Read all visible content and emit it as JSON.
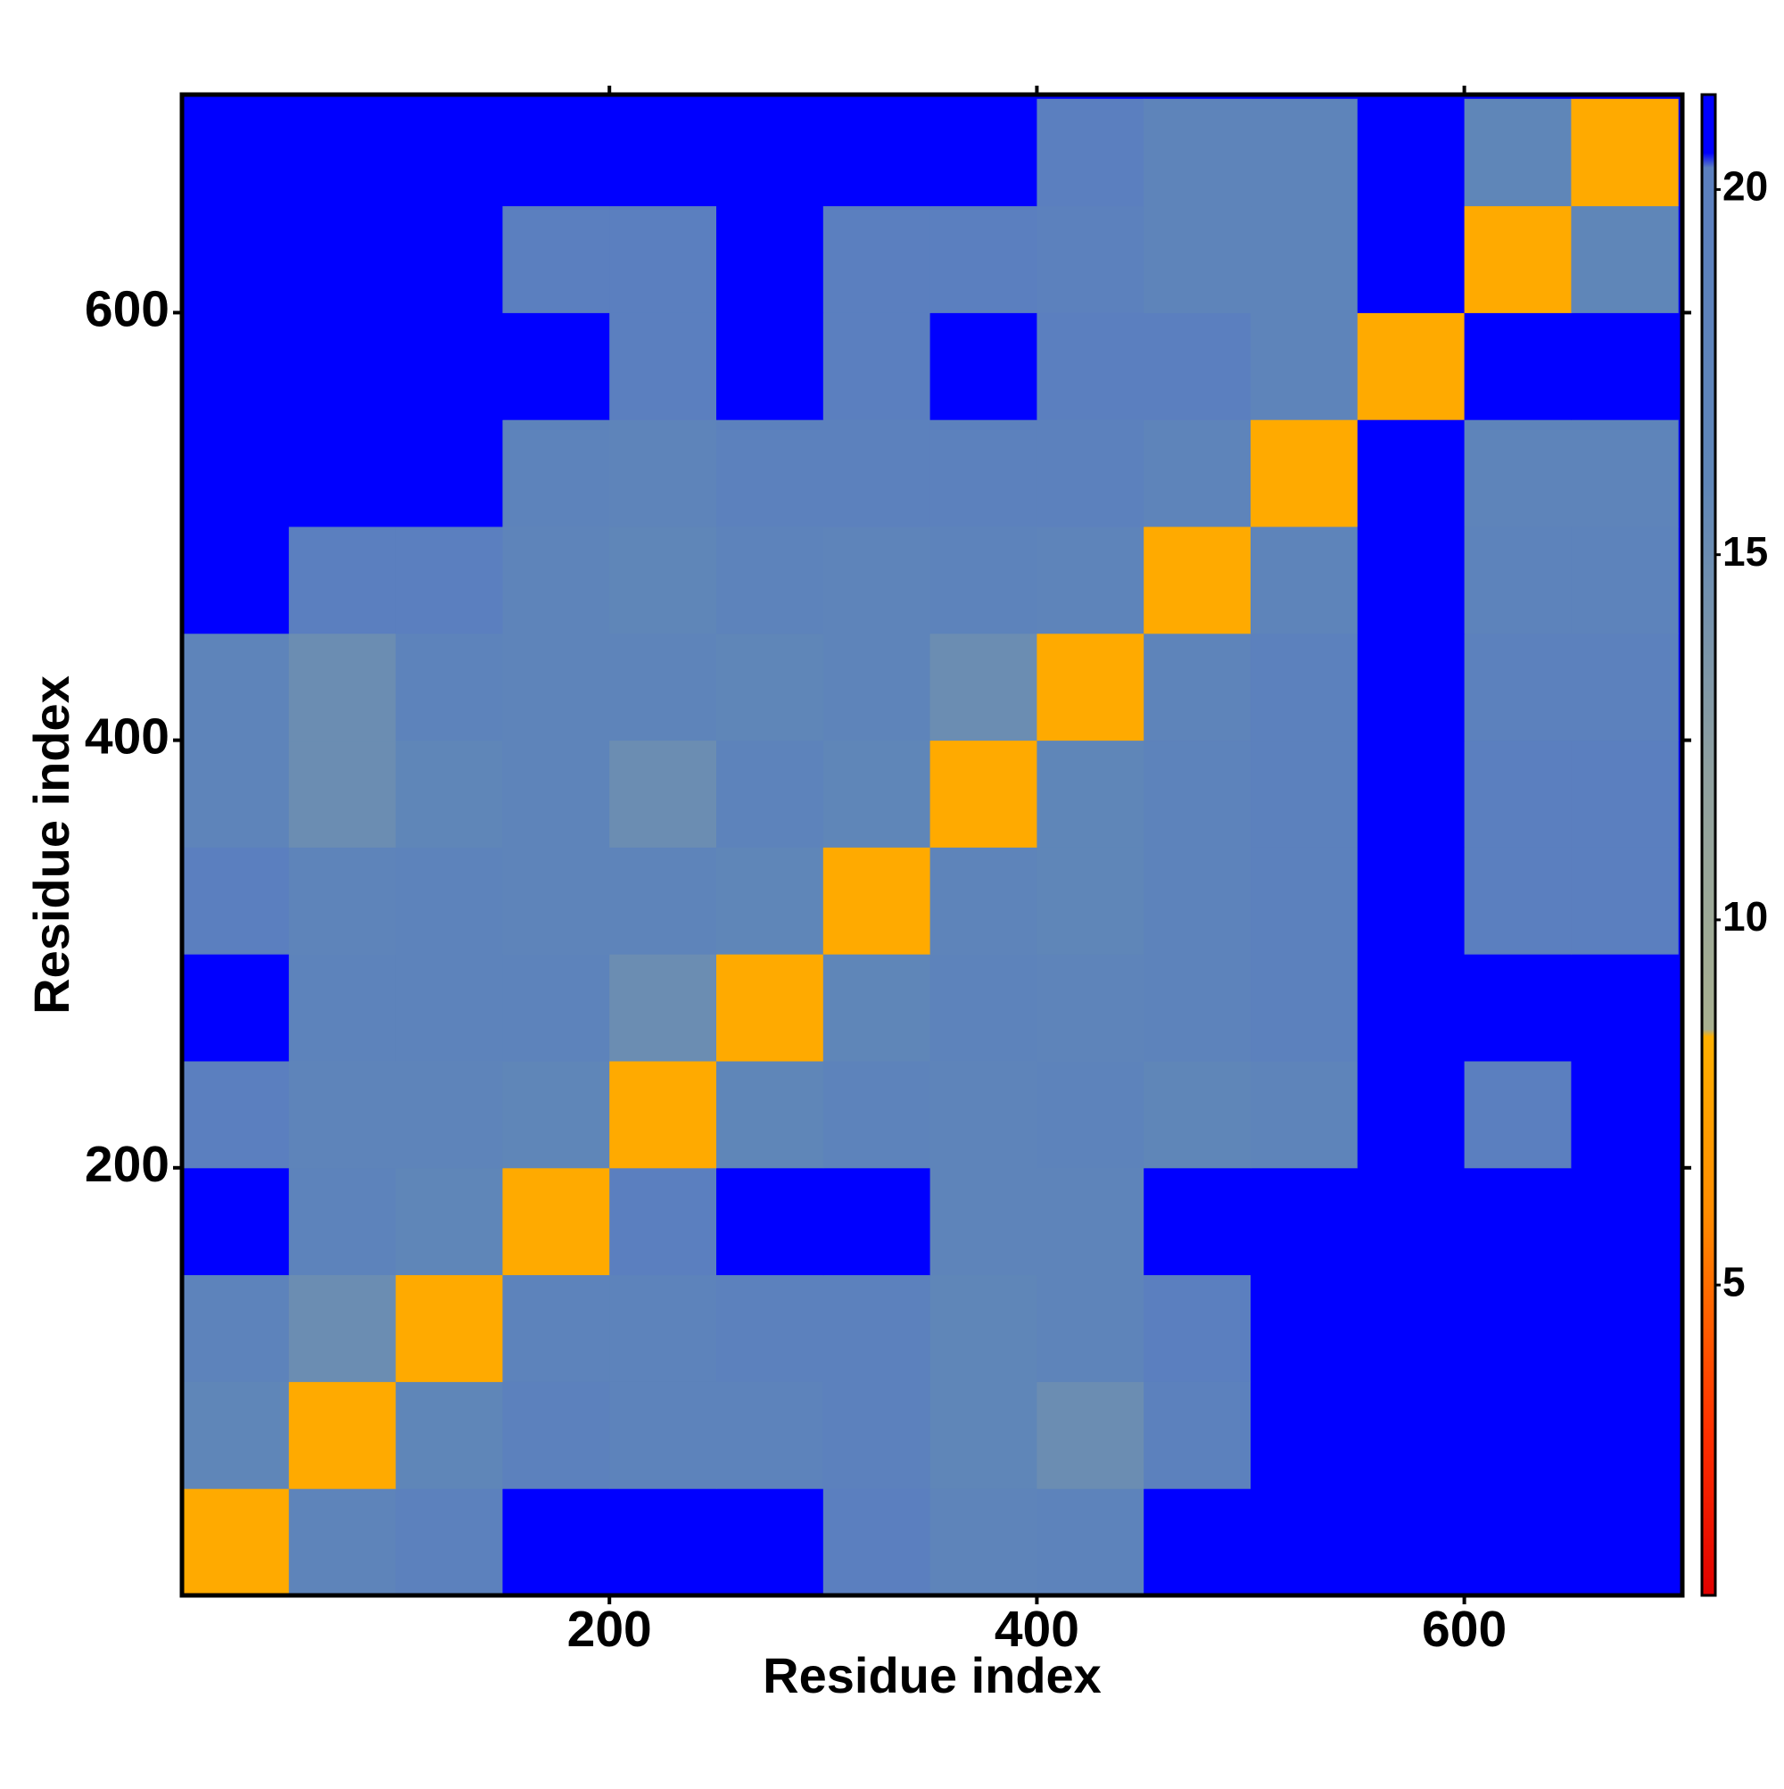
{
  "chart_data": {
    "type": "heatmap",
    "x_label": "Residue index",
    "y_label": "Residue index",
    "xbins": [
      0,
      50,
      100,
      150,
      200,
      250,
      300,
      350,
      400,
      450,
      500,
      550,
      600,
      650,
      700
    ],
    "ybins": [
      0,
      50,
      100,
      150,
      200,
      250,
      300,
      350,
      400,
      450,
      500,
      550,
      600,
      650,
      700
    ],
    "xlim": [
      0,
      702
    ],
    "ylim": [
      0,
      702
    ],
    "xticks": [
      200,
      400,
      600
    ],
    "yticks": [
      200,
      400,
      600
    ],
    "z": [
      [
        8,
        17,
        19,
        21,
        21,
        21,
        20,
        17,
        18,
        21,
        21,
        21,
        21,
        21
      ],
      [
        16,
        8,
        16,
        19,
        18,
        18,
        19,
        16,
        15,
        19,
        21,
        21,
        21,
        21
      ],
      [
        18,
        15,
        8,
        18,
        18,
        19,
        19,
        16,
        17,
        20,
        21,
        21,
        21,
        21
      ],
      [
        21,
        18,
        16,
        8,
        20,
        21,
        21,
        17,
        17,
        21,
        21,
        21,
        21,
        21
      ],
      [
        20,
        17,
        17,
        16,
        8,
        16,
        18,
        17,
        18,
        16,
        17,
        21,
        20,
        21
      ],
      [
        21,
        18,
        18,
        18,
        15,
        8,
        16,
        18,
        17,
        18,
        19,
        21,
        21,
        21
      ],
      [
        20,
        17,
        18,
        17,
        17,
        16,
        8,
        17,
        16,
        18,
        19,
        21,
        20,
        20
      ],
      [
        17,
        15,
        16,
        17,
        15,
        18,
        16,
        8,
        16,
        18,
        19,
        21,
        20,
        20
      ],
      [
        17,
        15,
        18,
        17,
        17,
        16,
        17,
        15,
        8,
        17,
        19,
        21,
        19,
        19
      ],
      [
        21,
        20,
        20,
        17,
        16,
        18,
        17,
        18,
        17,
        8,
        17,
        21,
        18,
        18
      ],
      [
        21,
        21,
        21,
        18,
        17,
        19,
        19,
        19,
        19,
        17,
        8,
        21,
        17,
        17
      ],
      [
        21,
        21,
        21,
        21,
        20,
        21,
        20,
        21,
        20,
        20,
        17,
        8,
        21,
        21
      ],
      [
        21,
        21,
        21,
        20,
        20,
        21,
        20,
        20,
        19,
        17,
        17,
        21,
        8,
        16
      ],
      [
        21,
        21,
        21,
        21,
        21,
        21,
        21,
        21,
        20,
        17,
        17,
        21,
        16,
        8
      ]
    ],
    "colorscale": [
      [
        0.75,
        "#e00000"
      ],
      [
        3,
        "#ff3000"
      ],
      [
        6,
        "#ff8c00"
      ],
      [
        8.4,
        "#ffb000"
      ],
      [
        8.5,
        "#a8b090"
      ],
      [
        12,
        "#8fa0a0"
      ],
      [
        16,
        "#5f86b8"
      ],
      [
        20.3,
        "#5b7fbf"
      ],
      [
        20.5,
        "#0000ff"
      ],
      [
        21.3,
        "#0000ff"
      ]
    ],
    "clim": [
      0.75,
      21.3
    ],
    "cticks": [
      5,
      10,
      15,
      20
    ]
  }
}
